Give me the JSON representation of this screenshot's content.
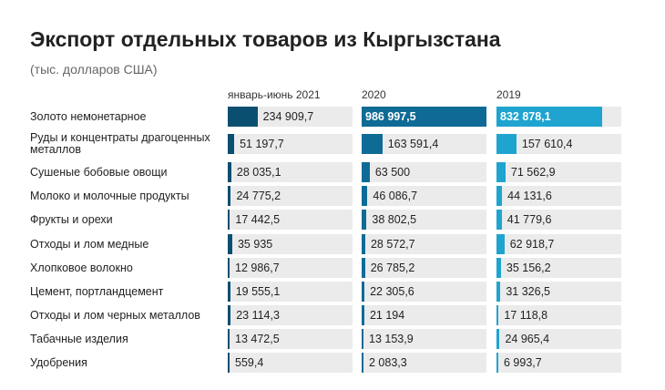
{
  "chart_data": {
    "type": "bar",
    "title": "Экспорт отдельных товаров из Кыргызстана",
    "subtitle": "(тыс. долларов США)",
    "categories": [
      "Золото немонетарное",
      "Руды и концентраты драгоценных металлов",
      "Сушеные бобовые овощи",
      "Молоко и молочные продукты",
      "Фрукты и орехи",
      "Отходы и лом медные",
      "Хлопковое волокно",
      "Цемент, портландцемент",
      "Отходы и лом черных металлов",
      "Табачные изделия",
      "Удобрения"
    ],
    "series": [
      {
        "name": "январь-июнь 2021",
        "color": "#0b4f70",
        "values": [
          234909.7,
          51197.7,
          28035.1,
          24775.2,
          17442.5,
          35935,
          12986.7,
          19555.1,
          23114.3,
          13472.5,
          559.4
        ],
        "value_labels": [
          "234 909,7",
          "51 197,7",
          "28 035,1",
          "24 775,2",
          "17 442,5",
          "35 935",
          "12 986,7",
          "19 555,1",
          "23 114,3",
          "13 472,5",
          "559,4"
        ]
      },
      {
        "name": "2020",
        "color": "#0f6b95",
        "values": [
          986997.5,
          163591.4,
          63500,
          46086.7,
          38802.5,
          28572.7,
          26785.2,
          22305.6,
          21194,
          13153.9,
          2083.3
        ],
        "value_labels": [
          "986 997,5",
          "163 591,4",
          "63 500",
          "46 086,7",
          "38 802,5",
          "28 572,7",
          "26 785,2",
          "22 305,6",
          "21 194",
          "13 153,9",
          "2 083,3"
        ]
      },
      {
        "name": "2019",
        "color": "#1fa4cf",
        "values": [
          832878.1,
          157610.4,
          71562.9,
          44131.6,
          41779.6,
          62918.7,
          35156.2,
          31326.5,
          17118.8,
          24965.4,
          6993.7
        ],
        "value_labels": [
          "832 878,1",
          "157 610,4",
          "71 562,9",
          "44 131,6",
          "41 779,6",
          "62 918,7",
          "35 156,2",
          "31 326,5",
          "17 118,8",
          "24 965,4",
          "6 993,7"
        ]
      }
    ]
  }
}
